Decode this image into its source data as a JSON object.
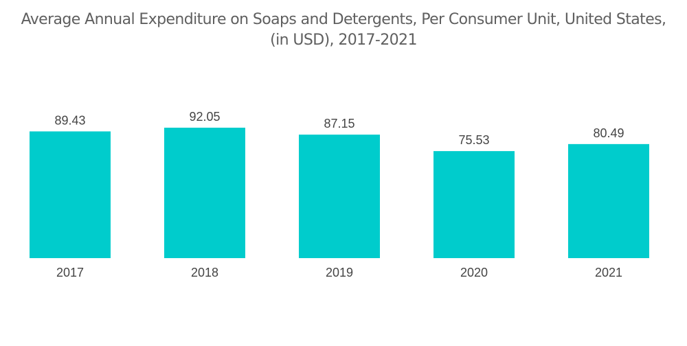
{
  "chart_data": {
    "type": "bar",
    "title": "Average Annual Expenditure on Soaps and Detergents, Per Consumer Unit, United States, (in USD), 2017-2021",
    "title_lines": [
      "Average Annual Expenditure on Soaps and Detergents, Per Consumer Unit, United States,",
      "(in USD), 2017-2021"
    ],
    "categories": [
      "2017",
      "2018",
      "2019",
      "2020",
      "2021"
    ],
    "values": [
      89.43,
      92.05,
      87.15,
      75.53,
      80.49
    ],
    "value_labels": [
      "89.43",
      "92.05",
      "87.15",
      "75.53",
      "80.49"
    ],
    "xlabel": "",
    "ylabel": "",
    "ylim": [
      0,
      92.05
    ],
    "grid": false,
    "legend": "none",
    "bar_color": "#00cccc"
  }
}
